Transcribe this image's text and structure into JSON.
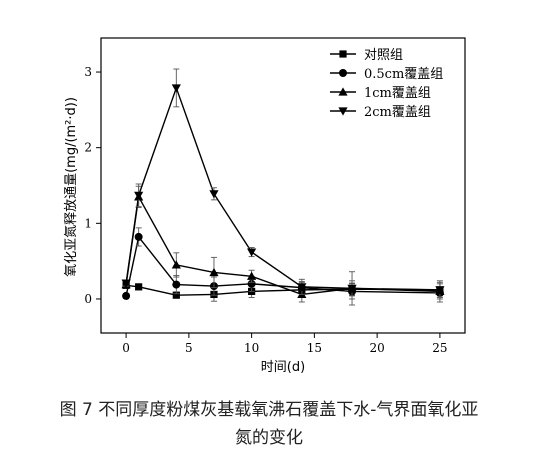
{
  "chart_data": {
    "type": "line",
    "xlabel": "时间(d)",
    "ylabel": "氧化亚氮释放通量(mg/(m²·d))",
    "xlim": [
      -2,
      27
    ],
    "ylim": [
      -0.45,
      3.45
    ],
    "xticks": [
      0,
      5,
      10,
      15,
      20,
      25
    ],
    "yticks": [
      0,
      1,
      2,
      3
    ],
    "legend_position": "top-right",
    "x": [
      0,
      1,
      4,
      7,
      10,
      14,
      18,
      25
    ],
    "series": [
      {
        "name": "对照组",
        "marker": "square",
        "values": [
          0.18,
          0.16,
          0.05,
          0.06,
          0.1,
          0.12,
          0.13,
          0.12
        ],
        "errors": [
          0.03,
          0.03,
          0.03,
          0.09,
          0.08,
          0.1,
          0.08,
          0.08
        ]
      },
      {
        "name": "0.5cm覆盖组",
        "marker": "circle",
        "values": [
          0.04,
          0.82,
          0.19,
          0.17,
          0.2,
          0.15,
          0.1,
          0.08
        ],
        "errors": [
          0.03,
          0.12,
          0.12,
          0.12,
          0.1,
          0.08,
          0.1,
          0.08
        ]
      },
      {
        "name": "1cm覆盖组",
        "marker": "triangle-up",
        "values": [
          0.19,
          1.35,
          0.45,
          0.35,
          0.3,
          0.06,
          0.14,
          0.1
        ],
        "errors": [
          0.04,
          0.14,
          0.16,
          0.2,
          0.08,
          0.1,
          0.22,
          0.14
        ]
      },
      {
        "name": "2cm覆盖组",
        "marker": "triangle-down",
        "values": [
          0.21,
          1.37,
          2.79,
          1.39,
          0.62,
          0.16,
          0.14,
          0.12
        ],
        "errors": [
          0.04,
          0.15,
          0.25,
          0.08,
          0.06,
          0.1,
          0.1,
          0.1
        ]
      }
    ]
  },
  "caption": {
    "line1": "图 7   不同厚度粉煤灰基载氧沸石覆盖下水-气界面氧化亚",
    "line2": "氮的变化"
  }
}
